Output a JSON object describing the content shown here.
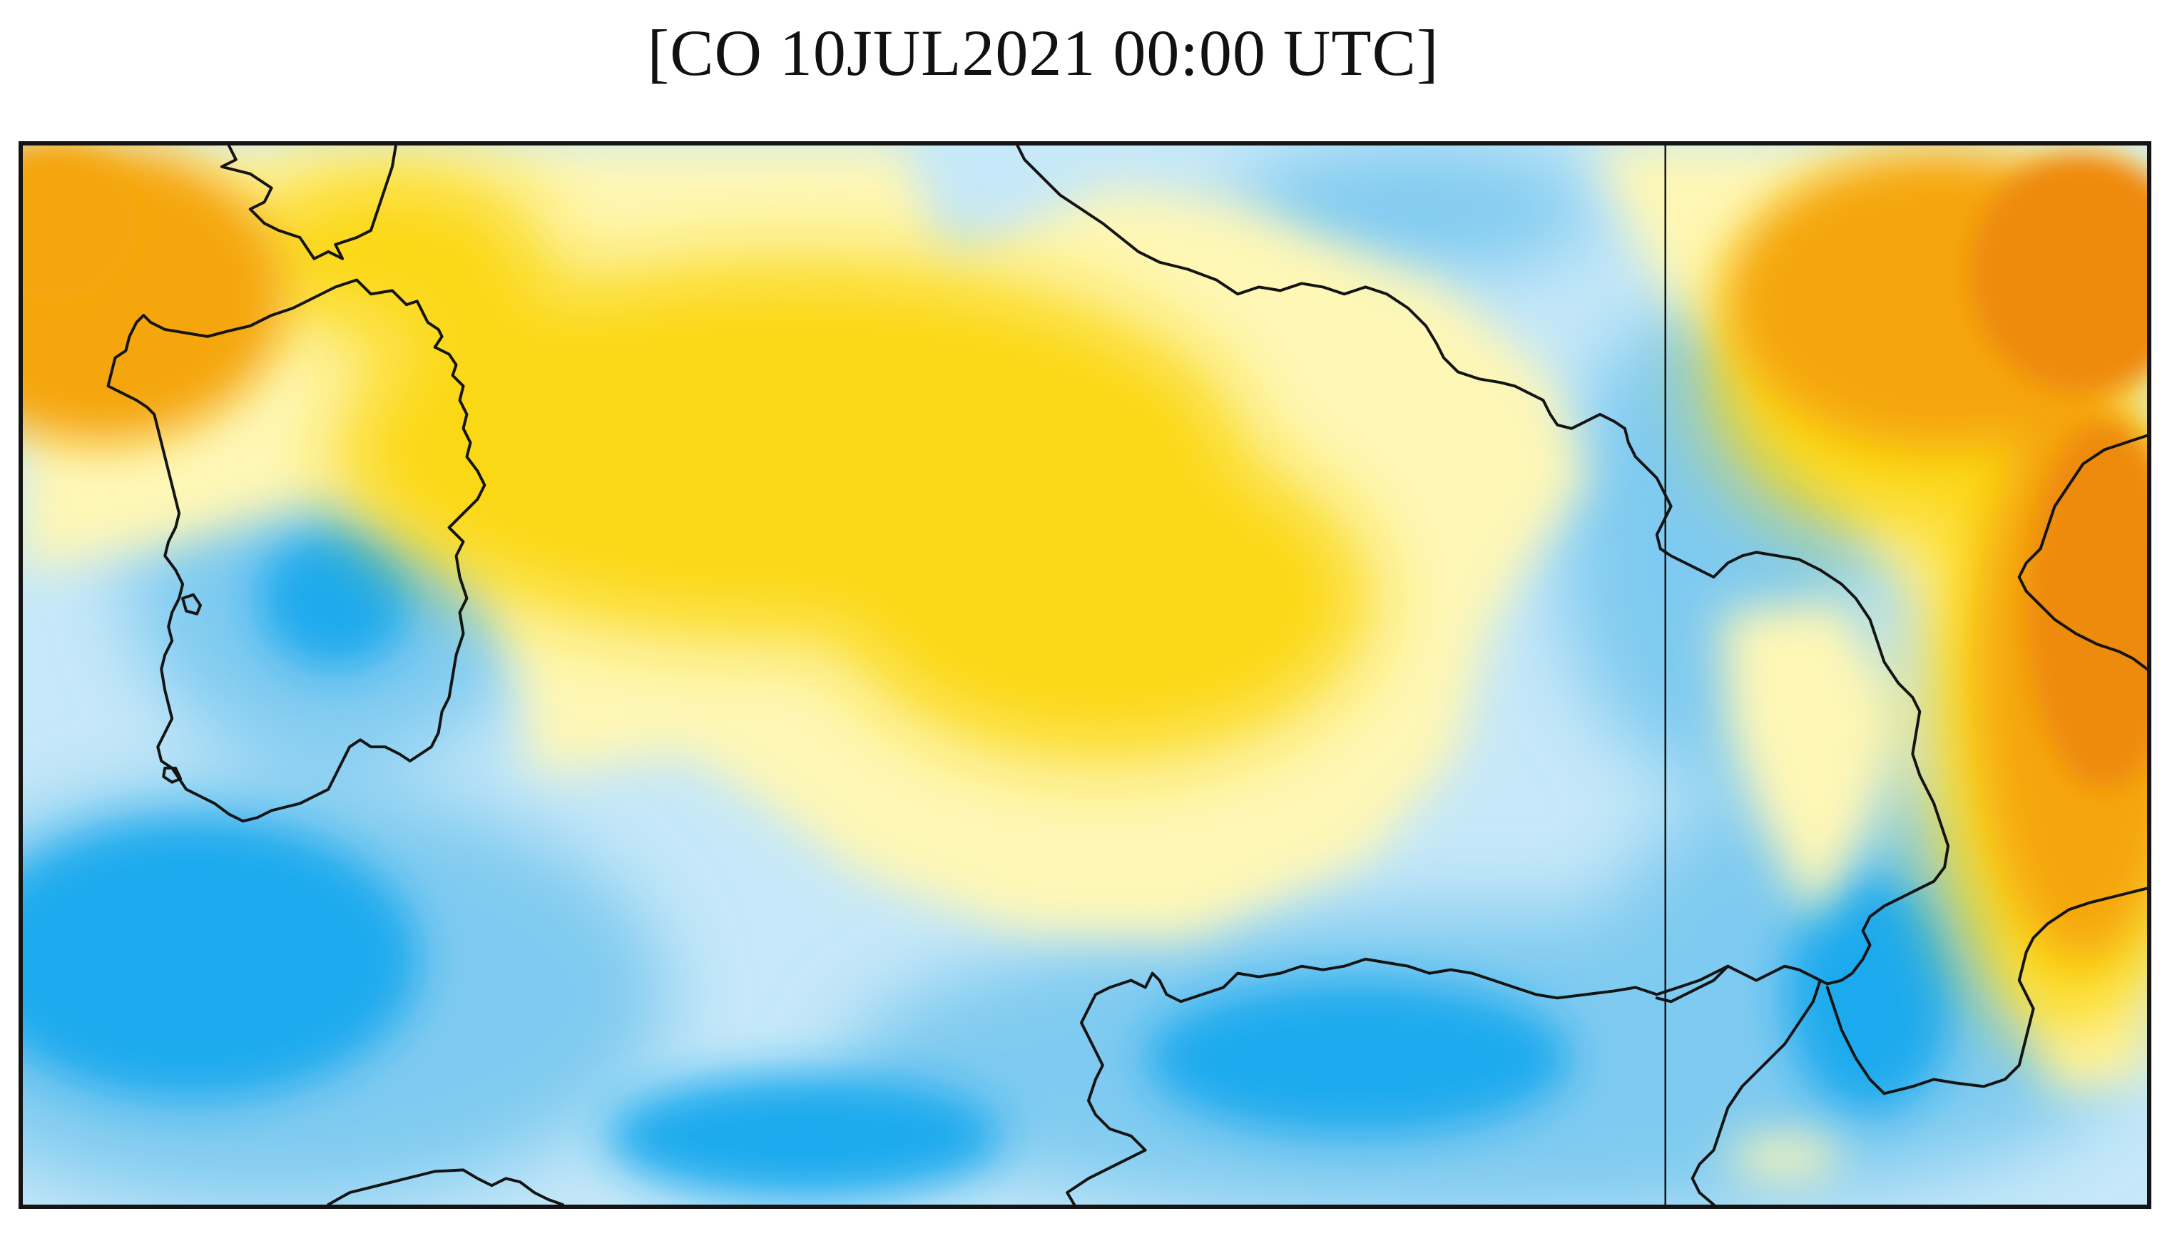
{
  "map": {
    "title": "[CO 10JUL2021 00:00 UTC]",
    "field": {
      "quantity": "CO",
      "date": "10JUL2021",
      "time": "00:00 UTC"
    },
    "colors": {
      "frame": "#141414",
      "coastline": "#141414",
      "low_blue": "#1aaaee",
      "mid_blue": "#7fcaf0",
      "light_blue": "#c6e8f8",
      "pale_yellow": "#fef7b6",
      "yellow": "#fbd813",
      "orange": "#f5a60f",
      "dark_orange": "#ee8a0b"
    },
    "color_scale_order": [
      "low_blue",
      "mid_blue",
      "light_blue",
      "pale_yellow",
      "yellow",
      "orange",
      "dark_orange"
    ],
    "regions": {
      "north_west": "orange",
      "north_central_sea": "yellow",
      "south_sea": "low_blue",
      "east": "dark_orange"
    }
  }
}
